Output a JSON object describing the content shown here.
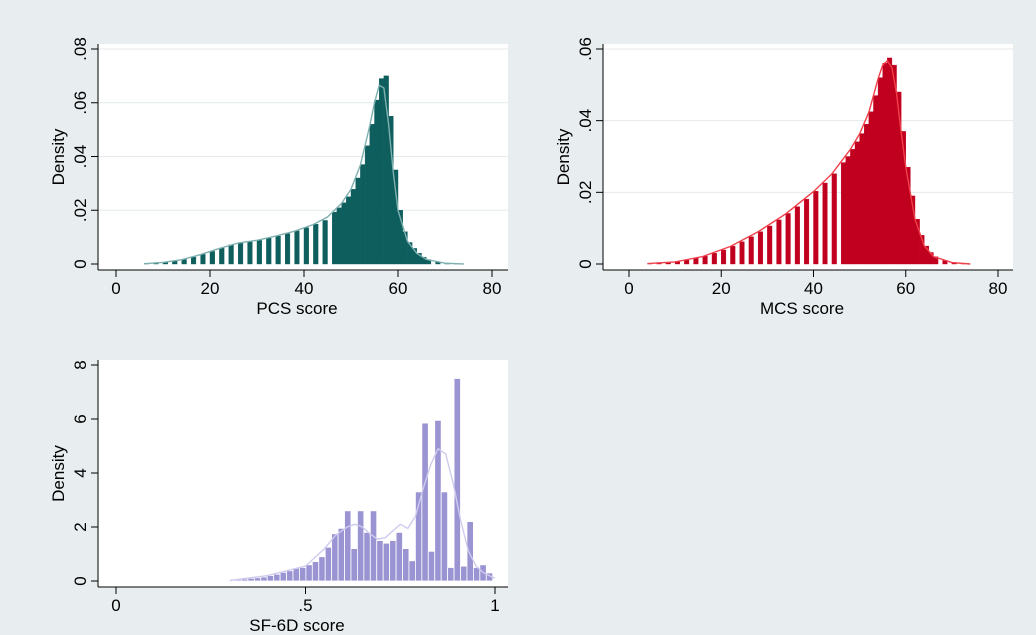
{
  "figure": {
    "background": "#e8eef0",
    "plot_background": "#ffffff"
  },
  "chart_data": [
    {
      "id": "pcs",
      "type": "histogram",
      "xlabel": "PCS score",
      "ylabel": "Density",
      "xlim": [
        0,
        80
      ],
      "ylim": [
        0,
        0.08
      ],
      "xticks": [
        0,
        20,
        40,
        60,
        80
      ],
      "xtick_labels": [
        "0",
        "20",
        "40",
        "60",
        "80"
      ],
      "yticks": [
        0,
        0.02,
        0.04,
        0.06,
        0.08
      ],
      "ytick_labels": [
        "0",
        ".02",
        ".04",
        ".06",
        ".08"
      ],
      "color": "#0e5e5e",
      "kde_color": "#7fb0b0",
      "grid": true,
      "bin_width": 1,
      "bins": [
        [
          6,
          0.0002
        ],
        [
          8,
          0.0004
        ],
        [
          10,
          0.0007
        ],
        [
          12,
          0.0012
        ],
        [
          14,
          0.0017
        ],
        [
          16,
          0.0026
        ],
        [
          18,
          0.0036
        ],
        [
          20,
          0.0047
        ],
        [
          22,
          0.0059
        ],
        [
          24,
          0.0071
        ],
        [
          26,
          0.0079
        ],
        [
          28,
          0.0083
        ],
        [
          30,
          0.0088
        ],
        [
          32,
          0.0096
        ],
        [
          34,
          0.0104
        ],
        [
          36,
          0.0113
        ],
        [
          38,
          0.0123
        ],
        [
          40,
          0.0135
        ],
        [
          42,
          0.0148
        ],
        [
          44,
          0.0162
        ],
        [
          46,
          0.0193
        ],
        [
          47,
          0.0209
        ],
        [
          48,
          0.0228
        ],
        [
          49,
          0.025
        ],
        [
          50,
          0.0278
        ],
        [
          51,
          0.032
        ],
        [
          52,
          0.037
        ],
        [
          53,
          0.044
        ],
        [
          54,
          0.052
        ],
        [
          55,
          0.061
        ],
        [
          56,
          0.069
        ],
        [
          57,
          0.07
        ],
        [
          58,
          0.055
        ],
        [
          59,
          0.035
        ],
        [
          60,
          0.02
        ],
        [
          61,
          0.012
        ],
        [
          62,
          0.008
        ],
        [
          63,
          0.0058
        ],
        [
          64,
          0.004
        ],
        [
          65,
          0.0025
        ],
        [
          66,
          0.0016
        ],
        [
          68,
          0.0008
        ],
        [
          70,
          0.0003
        ],
        [
          72,
          0.0001
        ]
      ],
      "kde": [
        [
          6,
          0.0001
        ],
        [
          10,
          0.0006
        ],
        [
          14,
          0.0016
        ],
        [
          18,
          0.0035
        ],
        [
          22,
          0.0058
        ],
        [
          26,
          0.0078
        ],
        [
          30,
          0.0088
        ],
        [
          34,
          0.0104
        ],
        [
          38,
          0.0122
        ],
        [
          42,
          0.0147
        ],
        [
          45,
          0.0175
        ],
        [
          48,
          0.0226
        ],
        [
          50,
          0.0278
        ],
        [
          52,
          0.0368
        ],
        [
          54,
          0.0515
        ],
        [
          55,
          0.06
        ],
        [
          56,
          0.0665
        ],
        [
          57,
          0.0655
        ],
        [
          58,
          0.052
        ],
        [
          59,
          0.034
        ],
        [
          60,
          0.02
        ],
        [
          62,
          0.0085
        ],
        [
          64,
          0.004
        ],
        [
          66,
          0.0017
        ],
        [
          70,
          0.0003
        ],
        [
          74,
          0
        ]
      ]
    },
    {
      "id": "mcs",
      "type": "histogram",
      "xlabel": "MCS score",
      "ylabel": "Density",
      "xlim": [
        0,
        80
      ],
      "ylim": [
        0,
        0.06
      ],
      "xticks": [
        0,
        20,
        40,
        60,
        80
      ],
      "xtick_labels": [
        "0",
        "20",
        "40",
        "60",
        "80"
      ],
      "yticks": [
        0,
        0.02,
        0.04,
        0.06
      ],
      "ytick_labels": [
        "0",
        ".02",
        ".04",
        ".06"
      ],
      "color": "#c0001e",
      "kde_color": "#f0404a",
      "grid": true,
      "bin_width": 1,
      "bins": [
        [
          4,
          0.0001
        ],
        [
          6,
          0.0002
        ],
        [
          8,
          0.0004
        ],
        [
          10,
          0.0007
        ],
        [
          12,
          0.0011
        ],
        [
          14,
          0.0016
        ],
        [
          16,
          0.0022
        ],
        [
          18,
          0.003
        ],
        [
          20,
          0.0039
        ],
        [
          22,
          0.005
        ],
        [
          24,
          0.0062
        ],
        [
          26,
          0.0076
        ],
        [
          28,
          0.009
        ],
        [
          30,
          0.0106
        ],
        [
          32,
          0.0123
        ],
        [
          34,
          0.0141
        ],
        [
          36,
          0.016
        ],
        [
          38,
          0.0181
        ],
        [
          40,
          0.0203
        ],
        [
          42,
          0.0226
        ],
        [
          44,
          0.0252
        ],
        [
          46,
          0.0283
        ],
        [
          47,
          0.03
        ],
        [
          48,
          0.032
        ],
        [
          49,
          0.0341
        ],
        [
          50,
          0.0364
        ],
        [
          51,
          0.039
        ],
        [
          52,
          0.0425
        ],
        [
          53,
          0.047
        ],
        [
          54,
          0.052
        ],
        [
          55,
          0.056
        ],
        [
          56,
          0.0575
        ],
        [
          57,
          0.0555
        ],
        [
          58,
          0.048
        ],
        [
          59,
          0.037
        ],
        [
          60,
          0.027
        ],
        [
          61,
          0.019
        ],
        [
          62,
          0.0125
        ],
        [
          63,
          0.008
        ],
        [
          64,
          0.005
        ],
        [
          65,
          0.0032
        ],
        [
          66,
          0.002
        ],
        [
          68,
          0.001
        ],
        [
          70,
          0.0004
        ],
        [
          72,
          0.0001
        ]
      ],
      "kde": [
        [
          4,
          0.0001
        ],
        [
          10,
          0.0006
        ],
        [
          16,
          0.0021
        ],
        [
          22,
          0.0049
        ],
        [
          28,
          0.009
        ],
        [
          34,
          0.014
        ],
        [
          40,
          0.0202
        ],
        [
          44,
          0.0252
        ],
        [
          48,
          0.032
        ],
        [
          50,
          0.0363
        ],
        [
          52,
          0.0424
        ],
        [
          54,
          0.0517
        ],
        [
          55,
          0.0555
        ],
        [
          56,
          0.0567
        ],
        [
          57,
          0.0548
        ],
        [
          58,
          0.0477
        ],
        [
          59,
          0.037
        ],
        [
          60,
          0.027
        ],
        [
          62,
          0.0125
        ],
        [
          64,
          0.0051
        ],
        [
          66,
          0.0021
        ],
        [
          70,
          0.0004
        ],
        [
          74,
          0
        ]
      ]
    },
    {
      "id": "sf6d",
      "type": "histogram",
      "xlabel": "SF-6D score",
      "ylabel": "Density",
      "xlim": [
        0,
        1
      ],
      "ylim": [
        0,
        8
      ],
      "xticks": [
        0,
        0.5,
        1
      ],
      "xtick_labels": [
        "0",
        ".5",
        "1"
      ],
      "yticks": [
        0,
        2,
        4,
        6,
        8
      ],
      "ytick_labels": [
        "0",
        "2",
        "4",
        "6",
        "8"
      ],
      "color": "#9b94d3",
      "kde_color": "#cfcbee",
      "grid": false,
      "bin_width": 0.017,
      "bins": [
        [
          0.314,
          0.05
        ],
        [
          0.331,
          0.07
        ],
        [
          0.348,
          0.1
        ],
        [
          0.365,
          0.12
        ],
        [
          0.382,
          0.15
        ],
        [
          0.399,
          0.2
        ],
        [
          0.416,
          0.25
        ],
        [
          0.433,
          0.32
        ],
        [
          0.45,
          0.38
        ],
        [
          0.467,
          0.47
        ],
        [
          0.484,
          0.5
        ],
        [
          0.501,
          0.6
        ],
        [
          0.518,
          0.72
        ],
        [
          0.535,
          0.9
        ],
        [
          0.552,
          1.25
        ],
        [
          0.569,
          1.75
        ],
        [
          0.586,
          1.95
        ],
        [
          0.603,
          2.6
        ],
        [
          0.62,
          1.2
        ],
        [
          0.637,
          2.6
        ],
        [
          0.654,
          1.8
        ],
        [
          0.671,
          2.6
        ],
        [
          0.688,
          1.5
        ],
        [
          0.705,
          1.4
        ],
        [
          0.722,
          1.5
        ],
        [
          0.739,
          1.8
        ],
        [
          0.756,
          1.2
        ],
        [
          0.773,
          0.75
        ],
        [
          0.79,
          3.3
        ],
        [
          0.807,
          5.85
        ],
        [
          0.824,
          1.1
        ],
        [
          0.841,
          5.95
        ],
        [
          0.858,
          3.3
        ],
        [
          0.875,
          0.5
        ],
        [
          0.892,
          7.5
        ],
        [
          0.909,
          0.55
        ],
        [
          0.926,
          2.2
        ],
        [
          0.943,
          0.5
        ],
        [
          0.96,
          0.6
        ],
        [
          0.977,
          0.3
        ]
      ],
      "kde": [
        [
          0.3,
          0.02
        ],
        [
          0.4,
          0.2
        ],
        [
          0.5,
          0.55
        ],
        [
          0.55,
          1.2
        ],
        [
          0.58,
          1.7
        ],
        [
          0.61,
          2.0
        ],
        [
          0.63,
          2.1
        ],
        [
          0.65,
          2.0
        ],
        [
          0.67,
          1.75
        ],
        [
          0.69,
          1.55
        ],
        [
          0.71,
          1.6
        ],
        [
          0.73,
          1.85
        ],
        [
          0.75,
          2.1
        ],
        [
          0.77,
          1.95
        ],
        [
          0.79,
          2.4
        ],
        [
          0.81,
          3.4
        ],
        [
          0.83,
          4.3
        ],
        [
          0.85,
          4.9
        ],
        [
          0.87,
          4.7
        ],
        [
          0.89,
          3.6
        ],
        [
          0.91,
          2.2
        ],
        [
          0.93,
          1.1
        ],
        [
          0.95,
          0.55
        ],
        [
          0.97,
          0.3
        ],
        [
          1.0,
          0.1
        ]
      ]
    }
  ]
}
